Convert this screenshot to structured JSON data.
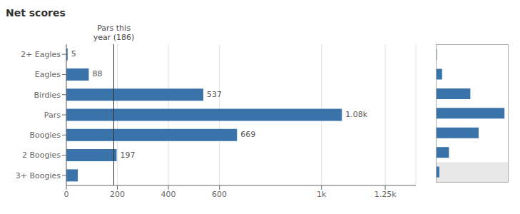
{
  "chart_data": [
    {
      "type": "bar",
      "title": "Net scores",
      "orientation": "horizontal",
      "categories": [
        "3+ Boogies",
        "2 Boogies",
        "Boogies",
        "Pars",
        "Birdies",
        "Eagles",
        "2+ Eagles"
      ],
      "values": [
        45,
        197,
        669,
        1080,
        537,
        88,
        5
      ],
      "value_labels": [
        null,
        "197",
        "669",
        "1.08k",
        "537",
        "88",
        "5"
      ],
      "data_labels": true,
      "color": "#3a72aa",
      "xlim": [
        0,
        1370
      ],
      "xticks": [
        0,
        200,
        400,
        600,
        {
          "value": 1000,
          "label": "1k"
        },
        {
          "value": 1250,
          "label": "1.25k"
        }
      ],
      "grid": true,
      "reference_line": {
        "x": 186,
        "label": [
          "Pars this",
          "year (186)"
        ]
      }
    },
    {
      "type": "bar",
      "orientation": "horizontal",
      "values": [
        45,
        197,
        669,
        1080,
        537,
        88,
        5
      ],
      "color": "#3a72aa",
      "xlim": [
        0,
        1134
      ],
      "tick_labels": false
    }
  ]
}
